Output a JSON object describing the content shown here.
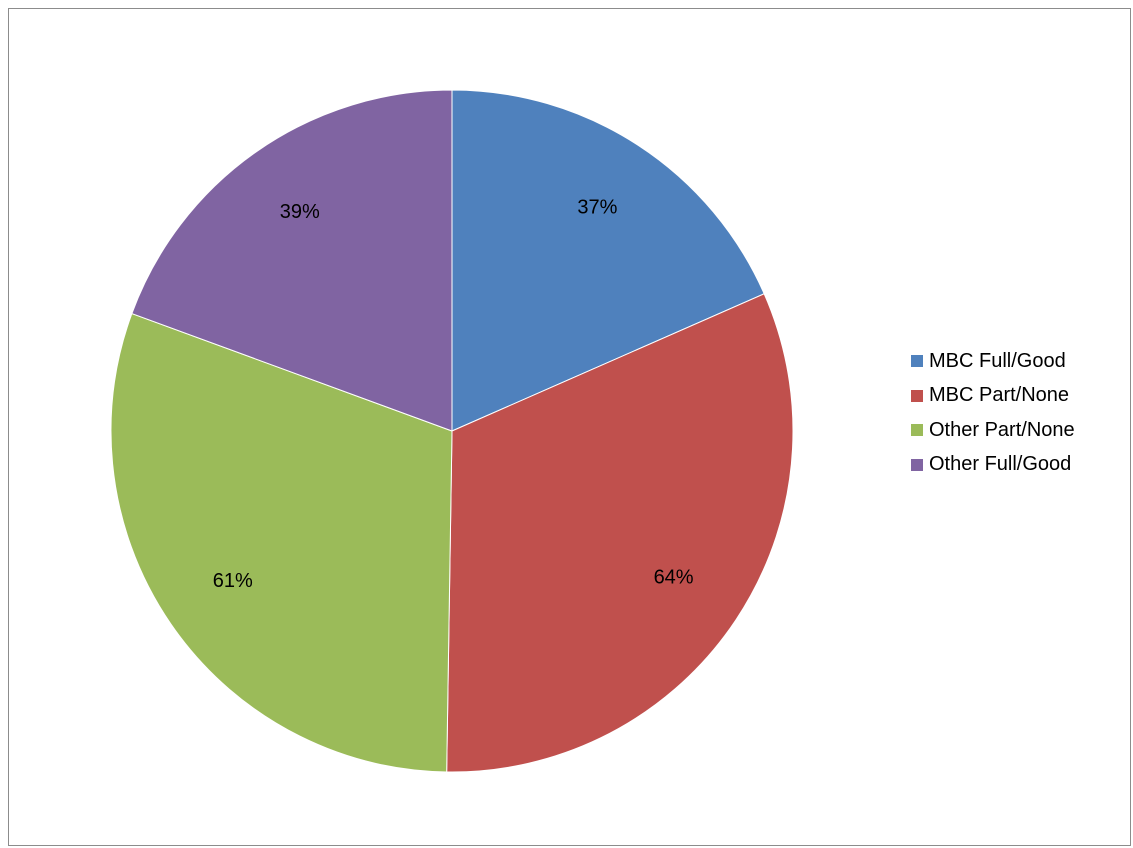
{
  "chart_data": {
    "type": "pie",
    "categories": [
      "MBC Full/Good",
      "MBC Part/None",
      "Other Part/None",
      "Other Full/Good"
    ],
    "values": [
      37,
      64,
      61,
      39
    ],
    "data_labels": [
      "37%",
      "64%",
      "61%",
      "39%"
    ],
    "colors": [
      "#4f81bd",
      "#c0504d",
      "#9bbb59",
      "#8064a2"
    ],
    "legend_position": "right",
    "start_angle": "12 o'clock",
    "direction": "clockwise"
  }
}
